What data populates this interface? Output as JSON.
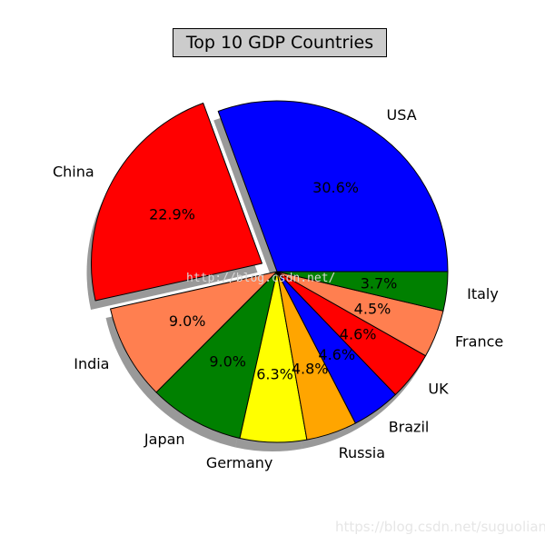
{
  "chart_data": {
    "type": "pie",
    "title": "Top 10 GDP Countries",
    "start_angle_deg": 0,
    "direction": "counterclockwise",
    "shadow": true,
    "slices": [
      {
        "label": "USA",
        "value": 30.6,
        "pct_label": "30.6%",
        "color": "#0000ff",
        "explode": 0
      },
      {
        "label": "China",
        "value": 22.9,
        "pct_label": "22.9%",
        "color": "#ff0000",
        "explode": 0.1
      },
      {
        "label": "India",
        "value": 9.0,
        "pct_label": "9.0%",
        "color": "#ff7f50",
        "explode": 0
      },
      {
        "label": "Japan",
        "value": 9.0,
        "pct_label": "9.0%",
        "color": "#008000",
        "explode": 0
      },
      {
        "label": "Germany",
        "value": 6.3,
        "pct_label": "6.3%",
        "color": "#ffff00",
        "explode": 0
      },
      {
        "label": "Russia",
        "value": 4.8,
        "pct_label": "4.8%",
        "color": "#ffa500",
        "explode": 0
      },
      {
        "label": "Brazil",
        "value": 4.6,
        "pct_label": "4.6%",
        "color": "#0000ff",
        "explode": 0
      },
      {
        "label": "UK",
        "value": 4.6,
        "pct_label": "4.6%",
        "color": "#ff0000",
        "explode": 0
      },
      {
        "label": "France",
        "value": 4.5,
        "pct_label": "4.5%",
        "color": "#ff7f50",
        "explode": 0
      },
      {
        "label": "Italy",
        "value": 3.7,
        "pct_label": "3.7%",
        "color": "#008000",
        "explode": 0
      }
    ]
  },
  "watermarks": {
    "center": "http://blog.csdn.net/",
    "corner": "https://blog.csdn.net/suguoliang"
  }
}
